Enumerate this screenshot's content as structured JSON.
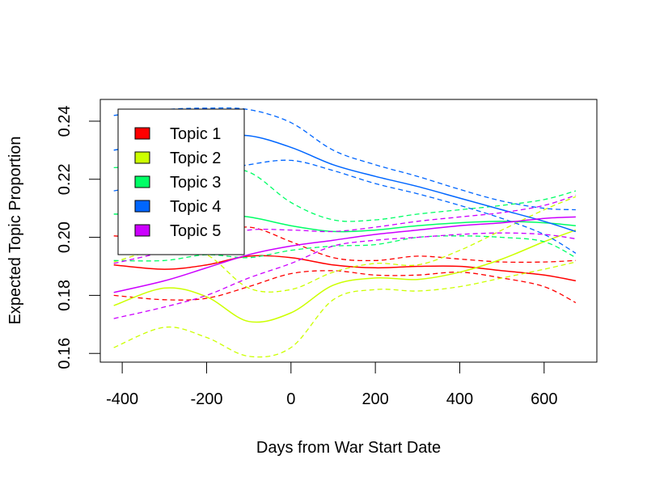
{
  "chart_data": {
    "type": "line",
    "title": "",
    "xlabel": "Days from War Start Date",
    "ylabel": "Expected Topic Proportion",
    "xlim": [
      -452,
      725
    ],
    "ylim": [
      0.157,
      0.2475
    ],
    "x_ticks": [
      -400,
      -200,
      0,
      200,
      400,
      600
    ],
    "x_tick_labels": [
      "-400",
      "-200",
      "0",
      "200",
      "400",
      "600"
    ],
    "y_ticks": [
      0.16,
      0.18,
      0.2,
      0.22,
      0.24
    ],
    "y_tick_labels": [
      "0.16",
      "0.18",
      "0.20",
      "0.22",
      "0.24"
    ],
    "grid": false,
    "legend_position": "top-left",
    "x": [
      -420,
      -300,
      -200,
      -100,
      0,
      100,
      200,
      300,
      400,
      500,
      600,
      675
    ],
    "series": [
      {
        "name": "Topic 1",
        "color": "#FF0000",
        "mean": [
          0.1905,
          0.189,
          0.1905,
          0.1935,
          0.193,
          0.1905,
          0.1895,
          0.19,
          0.19,
          0.1885,
          0.187,
          0.185
        ],
        "lower": [
          0.18,
          0.1785,
          0.179,
          0.183,
          0.1875,
          0.1885,
          0.187,
          0.187,
          0.188,
          0.186,
          0.183,
          0.1775
        ],
        "upper": [
          0.2005,
          0.1995,
          0.2005,
          0.2035,
          0.1985,
          0.193,
          0.192,
          0.1935,
          0.1925,
          0.1915,
          0.1915,
          0.192
        ]
      },
      {
        "name": "Topic 2",
        "color": "#CCFF00",
        "mean": [
          0.1765,
          0.1825,
          0.1795,
          0.171,
          0.174,
          0.1835,
          0.186,
          0.1855,
          0.188,
          0.1925,
          0.1985,
          0.2025
        ],
        "lower": [
          0.162,
          0.169,
          0.1655,
          0.159,
          0.162,
          0.1785,
          0.182,
          0.1815,
          0.183,
          0.186,
          0.189,
          0.1915
        ],
        "upper": [
          0.1915,
          0.196,
          0.194,
          0.1825,
          0.182,
          0.188,
          0.191,
          0.1905,
          0.1955,
          0.2025,
          0.2095,
          0.214
        ]
      },
      {
        "name": "Topic 3",
        "color": "#00FF66",
        "mean": [
          0.208,
          0.208,
          0.208,
          0.207,
          0.204,
          0.202,
          0.2025,
          0.204,
          0.205,
          0.2055,
          0.205,
          0.204
        ],
        "lower": [
          0.192,
          0.192,
          0.194,
          0.193,
          0.1955,
          0.197,
          0.1975,
          0.2,
          0.2005,
          0.2,
          0.1985,
          0.193
        ],
        "upper": [
          0.224,
          0.2245,
          0.2235,
          0.2225,
          0.212,
          0.206,
          0.206,
          0.208,
          0.2095,
          0.211,
          0.213,
          0.216
        ]
      },
      {
        "name": "Topic 4",
        "color": "#0066FF",
        "mean": [
          0.23,
          0.233,
          0.2345,
          0.235,
          0.231,
          0.225,
          0.221,
          0.2175,
          0.2135,
          0.2095,
          0.2055,
          0.202
        ],
        "lower": [
          0.216,
          0.219,
          0.222,
          0.225,
          0.2265,
          0.223,
          0.2185,
          0.215,
          0.211,
          0.2065,
          0.201,
          0.1945
        ],
        "upper": [
          0.242,
          0.244,
          0.2445,
          0.244,
          0.2395,
          0.23,
          0.225,
          0.221,
          0.2165,
          0.2125,
          0.21,
          0.2095
        ]
      },
      {
        "name": "Topic 5",
        "color": "#CC00FF",
        "mean": [
          0.181,
          0.185,
          0.1895,
          0.194,
          0.197,
          0.199,
          0.201,
          0.2025,
          0.204,
          0.205,
          0.2065,
          0.207
        ],
        "lower": [
          0.172,
          0.176,
          0.18,
          0.186,
          0.191,
          0.197,
          0.199,
          0.2,
          0.201,
          0.2015,
          0.201,
          0.1995
        ],
        "upper": [
          0.191,
          0.195,
          0.199,
          0.2025,
          0.2025,
          0.202,
          0.2035,
          0.2055,
          0.207,
          0.2085,
          0.211,
          0.2145
        ]
      }
    ]
  }
}
